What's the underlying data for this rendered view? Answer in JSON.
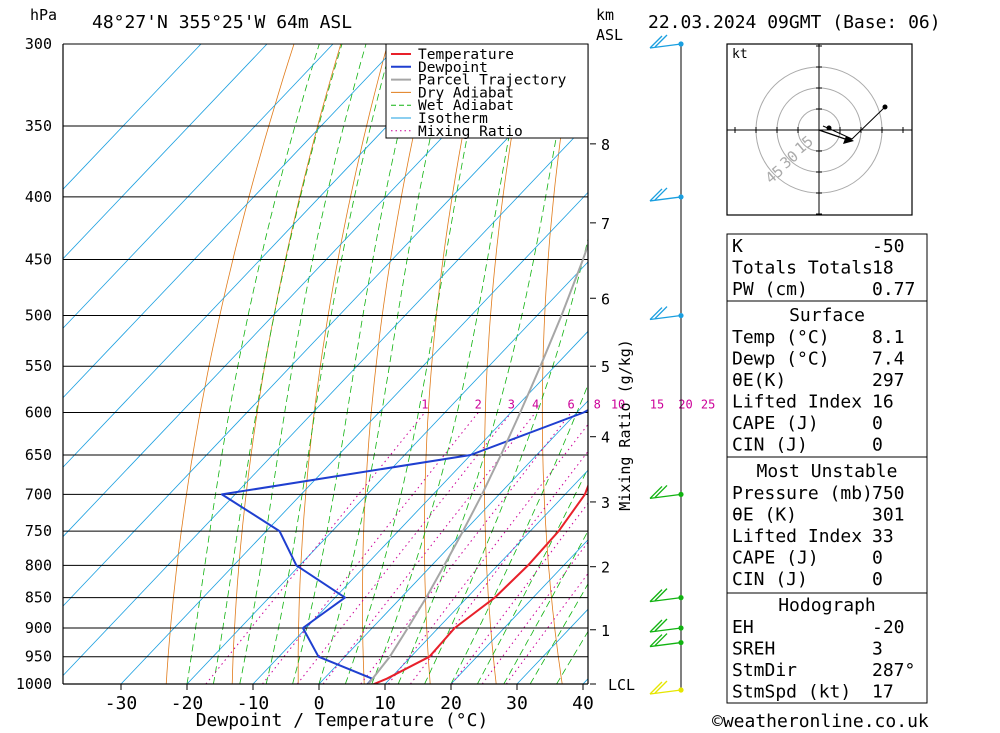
{
  "header": {
    "hpa_label": "hPa",
    "location": "48°27'N  355°25'W  64m  ASL",
    "km_label": "km",
    "asl_label": "ASL",
    "datetime": "22.03.2024  09GMT  (Base: 06)"
  },
  "legend": [
    {
      "label": "Temperature",
      "color": "#e8202a"
    },
    {
      "label": "Dewpoint",
      "color": "#1f3fd0"
    },
    {
      "label": "Parcel Trajectory",
      "color": "#a6a6a6"
    },
    {
      "label": "Dry Adiabat",
      "color": "#e07b1a"
    },
    {
      "label": "Wet Adiabat",
      "color": "#11b311"
    },
    {
      "label": "Isotherm",
      "color": "#1a9fe0"
    },
    {
      "label": "Mixing Ratio",
      "color": "#cc0099"
    }
  ],
  "chart_data": {
    "type": "line",
    "chart_subtype": "skew-T log-P",
    "xlabel": "Dewpoint / Temperature (°C)",
    "x_ticks": [
      -30,
      -20,
      -10,
      0,
      10,
      20,
      30,
      40
    ],
    "xlim": [
      -40,
      40
    ],
    "ylabel": "hPa",
    "y_scale": "log",
    "ylim": [
      1000,
      300
    ],
    "p_ticks": [
      300,
      350,
      400,
      450,
      500,
      550,
      600,
      650,
      700,
      750,
      800,
      850,
      900,
      950,
      1000
    ],
    "right_axis_label": "Mixing Ratio (g/kg)",
    "km_ticks": [
      {
        "km": "8",
        "p": 362
      },
      {
        "km": "7",
        "p": 420
      },
      {
        "km": "6",
        "p": 484
      },
      {
        "km": "5",
        "p": 550
      },
      {
        "km": "4",
        "p": 628
      },
      {
        "km": "3",
        "p": 710
      },
      {
        "km": "2",
        "p": 802
      },
      {
        "km": "1",
        "p": 903
      },
      {
        "km": "LCL",
        "p": 1000
      }
    ],
    "mixing_ratio_labels": [
      "1",
      "2",
      "3",
      "4",
      "6",
      "8",
      "10",
      "15",
      "20",
      "25"
    ],
    "mixing_ratio_values": [
      1,
      2,
      3,
      4,
      6,
      8,
      10,
      15,
      20,
      25
    ],
    "series": [
      {
        "name": "Temperature",
        "color": "#e8202a",
        "points": [
          [
            1002,
            8.1
          ],
          [
            990,
            9.5
          ],
          [
            950,
            12.8
          ],
          [
            900,
            12.5
          ],
          [
            850,
            14.2
          ],
          [
            800,
            14.6
          ],
          [
            750,
            14.3
          ],
          [
            700,
            13.0
          ],
          [
            650,
            9.6
          ],
          [
            600,
            6.8
          ],
          [
            550,
            4.0
          ],
          [
            500,
            0.6
          ],
          [
            450,
            -3.6
          ],
          [
            400,
            -8.6
          ],
          [
            350,
            -15.2
          ],
          [
            300,
            -22.4
          ]
        ]
      },
      {
        "name": "Dewpoint",
        "color": "#1f3fd0",
        "points": [
          [
            1002,
            7.4
          ],
          [
            990,
            7.3
          ],
          [
            950,
            -4.0
          ],
          [
            900,
            -10.5
          ],
          [
            850,
            -8.5
          ],
          [
            800,
            -20.5
          ],
          [
            750,
            -28.0
          ],
          [
            700,
            -42.0
          ],
          [
            650,
            -10.0
          ],
          [
            600,
            1.0
          ],
          [
            550,
            7.5
          ],
          [
            500,
            1.5
          ],
          [
            450,
            -6.5
          ],
          [
            400,
            -16.0
          ],
          [
            350,
            -16.5
          ],
          [
            300,
            -21.0
          ]
        ]
      },
      {
        "name": "Parcel Trajectory",
        "color": "#a6a6a6",
        "points": [
          [
            1002,
            7.5
          ],
          [
            950,
            6.8
          ],
          [
            900,
            5.4
          ],
          [
            850,
            3.8
          ],
          [
            800,
            1.9
          ],
          [
            750,
            -0.2
          ],
          [
            700,
            -2.6
          ],
          [
            650,
            -5.4
          ],
          [
            600,
            -8.6
          ],
          [
            550,
            -12.2
          ],
          [
            500,
            -16.3
          ],
          [
            450,
            -21.1
          ],
          [
            400,
            -26.8
          ],
          [
            350,
            -33.6
          ],
          [
            300,
            -41.5
          ]
        ]
      }
    ],
    "wind_barbs": [
      {
        "p": 300,
        "color": "#1a9fe0"
      },
      {
        "p": 400,
        "color": "#1a9fe0"
      },
      {
        "p": 500,
        "color": "#1a9fe0"
      },
      {
        "p": 700,
        "color": "#11b311"
      },
      {
        "p": 850,
        "color": "#11b311"
      },
      {
        "p": 900,
        "color": "#11b311"
      },
      {
        "p": 925,
        "color": "#11b311"
      },
      {
        "p": 1000,
        "color": "#e6e600"
      }
    ]
  },
  "hodograph": {
    "unit": "kt",
    "ring_labels": [
      "15",
      "30",
      "45"
    ],
    "ring_values_kt": [
      15,
      30,
      45
    ]
  },
  "indices": {
    "top": [
      {
        "label": "K",
        "value": "-50"
      },
      {
        "label": "Totals Totals",
        "value": "18"
      },
      {
        "label": "PW (cm)",
        "value": "0.77"
      }
    ],
    "surface": {
      "title": "Surface",
      "rows": [
        {
          "label": "Temp (°C)",
          "value": "8.1"
        },
        {
          "label": "Dewp (°C)",
          "value": "7.4"
        },
        {
          "label": "θE(K)",
          "value": "297"
        },
        {
          "label": "Lifted Index",
          "value": "16"
        },
        {
          "label": "CAPE (J)",
          "value": "0"
        },
        {
          "label": "CIN (J)",
          "value": "0"
        }
      ]
    },
    "most_unstable": {
      "title": "Most Unstable",
      "rows": [
        {
          "label": "Pressure (mb)",
          "value": "750"
        },
        {
          "label": "θE (K)",
          "value": "301"
        },
        {
          "label": "Lifted Index",
          "value": "33"
        },
        {
          "label": "CAPE (J)",
          "value": "0"
        },
        {
          "label": "CIN (J)",
          "value": "0"
        }
      ]
    },
    "hodograph": {
      "title": "Hodograph",
      "rows": [
        {
          "label": "EH",
          "value": "-20"
        },
        {
          "label": "SREH",
          "value": "3"
        },
        {
          "label": "StmDir",
          "value": "287°"
        },
        {
          "label": "StmSpd (kt)",
          "value": "17"
        }
      ]
    }
  },
  "footer": {
    "copyright": "©weatheronline.co.uk"
  }
}
